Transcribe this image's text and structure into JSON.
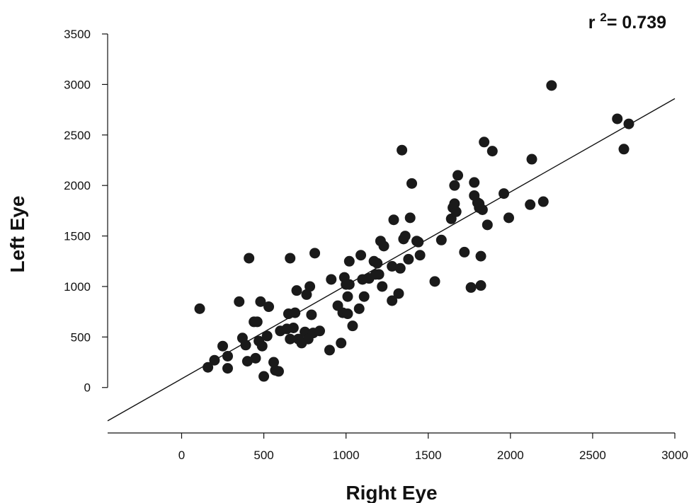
{
  "chart_data": {
    "type": "scatter",
    "xlabel": "Right Eye",
    "ylabel": "Left Eye",
    "xlim": [
      -450,
      3000
    ],
    "ylim": [
      -450,
      3500
    ],
    "xticks": [
      0,
      500,
      1000,
      1500,
      2000,
      2500,
      3000
    ],
    "yticks": [
      0,
      500,
      1000,
      1500,
      2000,
      2500,
      3000,
      3500
    ],
    "xtick_labels": [
      "0",
      "500",
      "1000",
      "1500",
      "2000",
      "2500",
      "3000"
    ],
    "ytick_labels": [
      "0",
      "500",
      "1000",
      "1500",
      "2000",
      "2500",
      "3000",
      "3500"
    ],
    "annotation": {
      "prefix": "r ",
      "sup": "2",
      "suffix": "= 0.739"
    },
    "grid": false,
    "marker_color": "#1a1a1a",
    "line_color": "#111111",
    "fit_line": {
      "x": [
        -450,
        3000
      ],
      "y": [
        -330,
        2860
      ]
    },
    "series": [
      {
        "x": [
          110,
          160,
          200,
          250,
          280,
          280,
          350,
          370,
          390,
          400,
          410,
          440,
          450,
          460,
          470,
          480,
          490,
          500,
          520,
          530,
          560,
          570,
          590,
          600,
          640,
          650,
          660,
          660,
          680,
          690,
          700,
          710,
          730,
          750,
          760,
          770,
          780,
          790,
          800,
          810,
          840,
          900,
          910,
          950,
          970,
          980,
          990,
          1000,
          1010,
          1010,
          1020,
          1020,
          1040,
          1080,
          1090,
          1100,
          1110,
          1140,
          1170,
          1180,
          1190,
          1200,
          1210,
          1220,
          1230,
          1280,
          1280,
          1290,
          1320,
          1330,
          1340,
          1350,
          1360,
          1380,
          1390,
          1400,
          1430,
          1440,
          1450,
          1540,
          1580,
          1640,
          1650,
          1660,
          1660,
          1670,
          1680,
          1720,
          1760,
          1780,
          1780,
          1800,
          1810,
          1810,
          1820,
          1820,
          1830,
          1840,
          1860,
          1890,
          1960,
          1990,
          2120,
          2130,
          2200,
          2250,
          2650,
          2690,
          2720
        ],
        "y": [
          780,
          200,
          270,
          410,
          310,
          190,
          850,
          490,
          420,
          260,
          1280,
          650,
          290,
          650,
          460,
          850,
          410,
          110,
          510,
          800,
          250,
          170,
          160,
          560,
          580,
          730,
          1280,
          480,
          590,
          740,
          960,
          480,
          440,
          550,
          920,
          480,
          1000,
          720,
          540,
          1330,
          560,
          370,
          1070,
          810,
          440,
          740,
          1090,
          1020,
          730,
          900,
          1020,
          1250,
          610,
          780,
          1310,
          1070,
          900,
          1080,
          1250,
          1120,
          1230,
          1120,
          1450,
          1000,
          1400,
          860,
          1200,
          1660,
          930,
          1180,
          2350,
          1470,
          1500,
          1270,
          1680,
          2020,
          1450,
          1440,
          1310,
          1050,
          1460,
          1670,
          1780,
          1820,
          2000,
          1740,
          2100,
          1340,
          990,
          2030,
          1900,
          1830,
          1780,
          1820,
          1010,
          1300,
          1760,
          2430,
          1610,
          2340,
          1920,
          1680,
          1810,
          2260,
          1840,
          2990,
          2660,
          2360,
          2610
        ]
      }
    ]
  }
}
